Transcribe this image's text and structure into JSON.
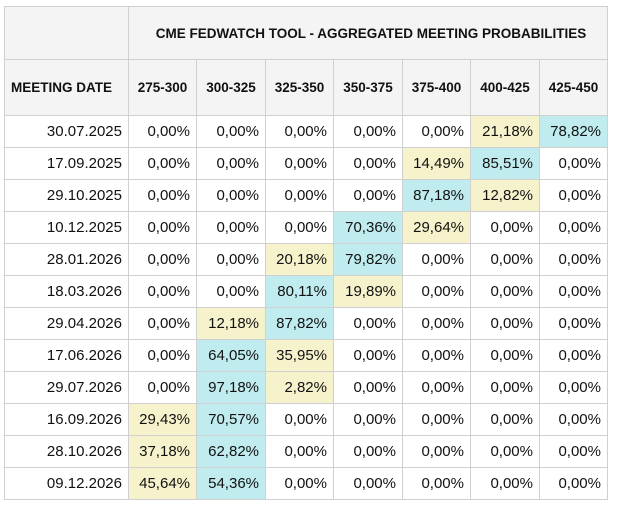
{
  "title": "CME FEDWATCH TOOL - AGGREGATED MEETING PROBABILITIES",
  "date_header": "MEETING DATE",
  "ranges": [
    "275-300",
    "300-325",
    "325-350",
    "350-375",
    "375-400",
    "400-425",
    "425-450"
  ],
  "colors": {
    "highest": "#c0ecf0",
    "second": "#f6f3cc",
    "header_bg": "#f4f4f4"
  },
  "rows": [
    {
      "date": "30.07.2025",
      "values": [
        "0,00%",
        "0,00%",
        "0,00%",
        "0,00%",
        "0,00%",
        "21,18%",
        "78,82%"
      ],
      "hl": [
        "",
        "",
        "",
        "",
        "",
        "mid",
        "hi"
      ]
    },
    {
      "date": "17.09.2025",
      "values": [
        "0,00%",
        "0,00%",
        "0,00%",
        "0,00%",
        "14,49%",
        "85,51%",
        "0,00%"
      ],
      "hl": [
        "",
        "",
        "",
        "",
        "mid",
        "hi",
        ""
      ]
    },
    {
      "date": "29.10.2025",
      "values": [
        "0,00%",
        "0,00%",
        "0,00%",
        "0,00%",
        "87,18%",
        "12,82%",
        "0,00%"
      ],
      "hl": [
        "",
        "",
        "",
        "",
        "hi",
        "mid",
        ""
      ]
    },
    {
      "date": "10.12.2025",
      "values": [
        "0,00%",
        "0,00%",
        "0,00%",
        "70,36%",
        "29,64%",
        "0,00%",
        "0,00%"
      ],
      "hl": [
        "",
        "",
        "",
        "hi",
        "mid",
        "",
        ""
      ]
    },
    {
      "date": "28.01.2026",
      "values": [
        "0,00%",
        "0,00%",
        "20,18%",
        "79,82%",
        "0,00%",
        "0,00%",
        "0,00%"
      ],
      "hl": [
        "",
        "",
        "mid",
        "hi",
        "",
        "",
        ""
      ]
    },
    {
      "date": "18.03.2026",
      "values": [
        "0,00%",
        "0,00%",
        "80,11%",
        "19,89%",
        "0,00%",
        "0,00%",
        "0,00%"
      ],
      "hl": [
        "",
        "",
        "hi",
        "mid",
        "",
        "",
        ""
      ]
    },
    {
      "date": "29.04.2026",
      "values": [
        "0,00%",
        "12,18%",
        "87,82%",
        "0,00%",
        "0,00%",
        "0,00%",
        "0,00%"
      ],
      "hl": [
        "",
        "mid",
        "hi",
        "",
        "",
        "",
        ""
      ]
    },
    {
      "date": "17.06.2026",
      "values": [
        "0,00%",
        "64,05%",
        "35,95%",
        "0,00%",
        "0,00%",
        "0,00%",
        "0,00%"
      ],
      "hl": [
        "",
        "hi",
        "mid",
        "",
        "",
        "",
        ""
      ]
    },
    {
      "date": "29.07.2026",
      "values": [
        "0,00%",
        "97,18%",
        "2,82%",
        "0,00%",
        "0,00%",
        "0,00%",
        "0,00%"
      ],
      "hl": [
        "",
        "hi",
        "mid",
        "",
        "",
        "",
        ""
      ]
    },
    {
      "date": "16.09.2026",
      "values": [
        "29,43%",
        "70,57%",
        "0,00%",
        "0,00%",
        "0,00%",
        "0,00%",
        "0,00%"
      ],
      "hl": [
        "mid",
        "hi",
        "",
        "",
        "",
        "",
        ""
      ]
    },
    {
      "date": "28.10.2026",
      "values": [
        "37,18%",
        "62,82%",
        "0,00%",
        "0,00%",
        "0,00%",
        "0,00%",
        "0,00%"
      ],
      "hl": [
        "mid",
        "hi",
        "",
        "",
        "",
        "",
        ""
      ]
    },
    {
      "date": "09.12.2026",
      "values": [
        "45,64%",
        "54,36%",
        "0,00%",
        "0,00%",
        "0,00%",
        "0,00%",
        "0,00%"
      ],
      "hl": [
        "mid",
        "hi",
        "",
        "",
        "",
        "",
        ""
      ]
    }
  ]
}
